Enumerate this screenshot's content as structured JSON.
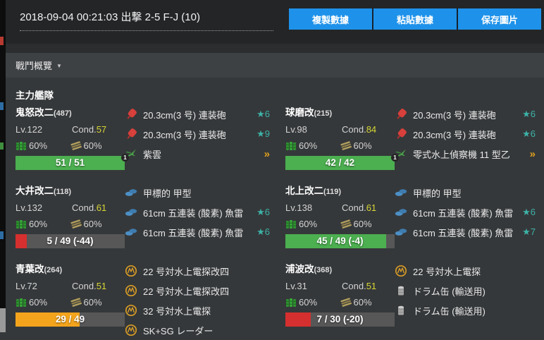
{
  "colors": {
    "green": "#4caf50",
    "orange": "#f4a41c",
    "red": "#d52f2f",
    "accent_blue": "#1e92ea",
    "star_teal": "#3db3a9",
    "chevron_gold": "#dfa11d",
    "cond_yellow": "#d6d636"
  },
  "header": {
    "title": "2018-09-04 00:21:03 出撃 2-5 F-J (10)",
    "buttons": [
      "複製數據",
      "粘貼數據",
      "保存圖片"
    ]
  },
  "section": {
    "label": "戰鬥概覽",
    "caret": "▼"
  },
  "fleet": {
    "title": "主力艦隊",
    "ships": [
      {
        "name": "鬼怒改二",
        "id": "(487)",
        "level": "Lv.122",
        "cond_label": "Cond.",
        "cond": "57",
        "fuel": "60%",
        "ammo": "60%",
        "hp": {
          "text": "51 / 51",
          "pct": 100,
          "color": "green"
        },
        "equipment": [
          {
            "icon": "main-gun",
            "name": "20.3cm(3 号) 連装砲",
            "star": "★6"
          },
          {
            "icon": "main-gun",
            "name": "20.3cm(3 号) 連装砲",
            "star": "★9"
          },
          {
            "icon": "seaplane",
            "badge": "1",
            "name": "紫雲",
            "chevron": "»"
          }
        ]
      },
      {
        "name": "球磨改",
        "id": "(215)",
        "level": "Lv.98",
        "cond_label": "Cond.",
        "cond": "84",
        "fuel": "60%",
        "ammo": "60%",
        "hp": {
          "text": "42 / 42",
          "pct": 100,
          "color": "green"
        },
        "equipment": [
          {
            "icon": "main-gun",
            "name": "20.3cm(3 号) 連装砲",
            "star": "★6"
          },
          {
            "icon": "main-gun",
            "name": "20.3cm(3 号) 連装砲",
            "star": "★6"
          },
          {
            "icon": "seaplane",
            "badge": "1",
            "name": "零式水上偵察機 11 型乙",
            "chevron": "»"
          }
        ]
      },
      {
        "name": "大井改二",
        "id": "(118)",
        "level": "Lv.132",
        "cond_label": "Cond.",
        "cond": "61",
        "fuel": "60%",
        "ammo": "60%",
        "hp": {
          "text": "5 / 49 (-44)",
          "pct": 10,
          "color": "red"
        },
        "equipment": [
          {
            "icon": "torpedo",
            "name": "甲標的 甲型"
          },
          {
            "icon": "torpedo",
            "name": "61cm 五連装 (酸素) 魚雷",
            "star": "★6"
          },
          {
            "icon": "torpedo",
            "name": "61cm 五連装 (酸素) 魚雷",
            "star": "★6"
          }
        ]
      },
      {
        "name": "北上改二",
        "id": "(119)",
        "level": "Lv.138",
        "cond_label": "Cond.",
        "cond": "61",
        "fuel": "60%",
        "ammo": "60%",
        "hp": {
          "text": "45 / 49 (-4)",
          "pct": 92,
          "color": "green"
        },
        "equipment": [
          {
            "icon": "torpedo",
            "name": "甲標的 甲型"
          },
          {
            "icon": "torpedo",
            "name": "61cm 五連装 (酸素) 魚雷",
            "star": "★6"
          },
          {
            "icon": "torpedo",
            "name": "61cm 五連装 (酸素) 魚雷",
            "star": "★7"
          }
        ]
      },
      {
        "name": "青葉改",
        "id": "(264)",
        "level": "Lv.72",
        "cond_label": "Cond.",
        "cond": "51",
        "fuel": "60%",
        "ammo": "60%",
        "hp": {
          "text": "29 / 49",
          "pct": 59,
          "color": "orange"
        },
        "equipment": [
          {
            "icon": "radar",
            "name": "22 号対水上電探改四"
          },
          {
            "icon": "radar",
            "name": "22 号対水上電探改四"
          },
          {
            "icon": "radar",
            "name": "32 号対水上電探"
          },
          {
            "icon": "radar",
            "name": "SK+SG レーダー"
          }
        ]
      },
      {
        "name": "浦波改",
        "id": "(368)",
        "level": "Lv.31",
        "cond_label": "Cond.",
        "cond": "51",
        "fuel": "60%",
        "ammo": "60%",
        "hp": {
          "text": "7 / 30 (-20)",
          "pct": 23,
          "color": "red"
        },
        "equipment": [
          {
            "icon": "radar",
            "name": "22 号対水上電探"
          },
          {
            "icon": "drum",
            "name": "ドラム缶 (輸送用)"
          },
          {
            "icon": "drum",
            "name": "ドラム缶 (輸送用)"
          }
        ]
      }
    ]
  }
}
